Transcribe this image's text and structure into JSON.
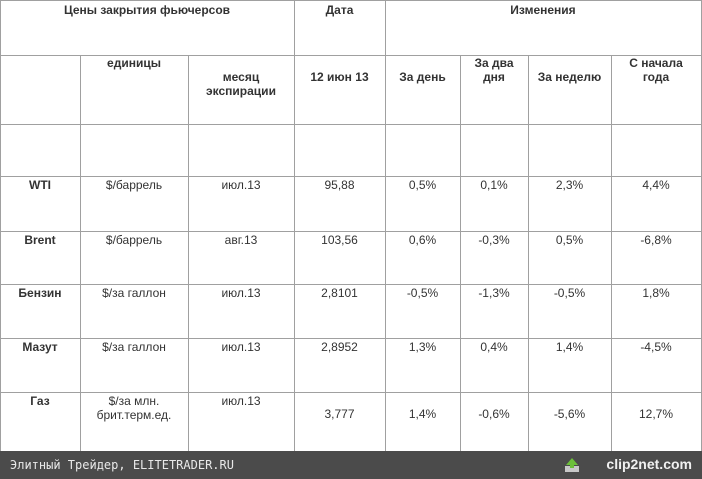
{
  "header": {
    "row1": [
      "Цены закрытия фьючерсов",
      "Дата",
      "Изменения"
    ],
    "row2": [
      "единицы",
      "месяц экспирации",
      "12 июн 13",
      "За день",
      "За два дня",
      "За неделю",
      "С начала года"
    ]
  },
  "table": {
    "rows": [
      [
        "WTI",
        "$/баррель",
        "июл.13",
        "95,88",
        "0,5%",
        "0,1%",
        "2,3%",
        "4,4%"
      ],
      [
        "Brent",
        "$/баррель",
        "авг.13",
        "103,56",
        "0,6%",
        "-0,3%",
        "0,5%",
        "-6,8%"
      ],
      [
        "Бензин",
        "$/за галлон",
        "июл.13",
        "2,8101",
        "-0,5%",
        "-1,3%",
        "-0,5%",
        "1,8%"
      ],
      [
        "Мазут",
        "$/за галлон",
        "июл.13",
        "2,8952",
        "1,3%",
        "0,4%",
        "1,4%",
        "-4,5%"
      ],
      [
        "Газ",
        "$/за млн. брит.терм.ед.",
        "июл.13",
        "3,777",
        "1,4%",
        "-0,6%",
        "-5,6%",
        "12,7%"
      ]
    ]
  },
  "footer": {
    "text": "Элитный Трейдер, ELITETRADER.RU",
    "logo": "clip2net.com"
  }
}
